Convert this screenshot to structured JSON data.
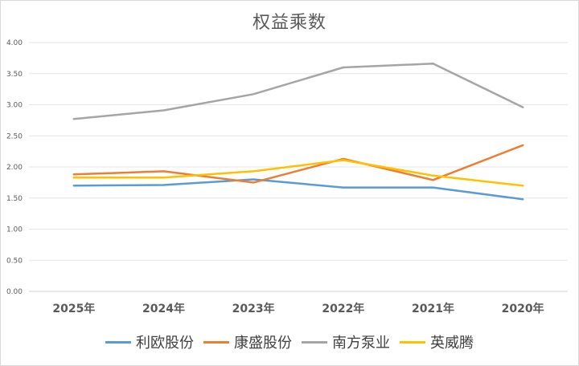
{
  "chart_data": {
    "type": "line",
    "title": "权益乘数",
    "categories": [
      "2025年",
      "2024年",
      "2023年",
      "2022年",
      "2021年",
      "2020年"
    ],
    "series": [
      {
        "name": "利欧股份",
        "color": "#5B9BD5",
        "values": [
          1.7,
          1.71,
          1.8,
          1.67,
          1.67,
          1.48
        ]
      },
      {
        "name": "康盛股份",
        "color": "#ED7D31",
        "values": [
          1.88,
          1.93,
          1.75,
          2.13,
          1.79,
          2.35
        ]
      },
      {
        "name": "南方泵业",
        "color": "#A5A5A5",
        "values": [
          2.77,
          2.91,
          3.17,
          3.6,
          3.66,
          2.96
        ]
      },
      {
        "name": "英威腾",
        "color": "#FFC000",
        "values": [
          1.83,
          1.83,
          1.93,
          2.11,
          1.86,
          1.7
        ]
      }
    ],
    "yticks": [
      "0.00",
      "0.50",
      "1.00",
      "1.50",
      "2.00",
      "2.50",
      "3.00",
      "3.50",
      "4.00"
    ],
    "ylim": [
      0,
      4
    ],
    "grid": true,
    "legend_position": "bottom"
  }
}
